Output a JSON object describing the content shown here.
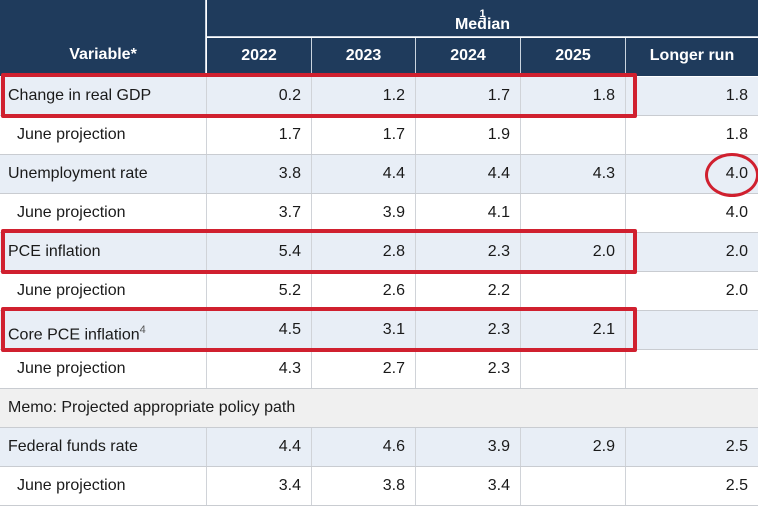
{
  "header": {
    "variable_label": "Variable*",
    "group_label": "Median",
    "group_footnote": "1",
    "columns": [
      "2022",
      "2023",
      "2024",
      "2025",
      "Longer run"
    ]
  },
  "rows": [
    {
      "label": "Change in real GDP",
      "footnote": "",
      "values": [
        "0.2",
        "1.2",
        "1.7",
        "1.8",
        "1.8"
      ]
    },
    {
      "label": "June projection",
      "footnote": "",
      "values": [
        "1.7",
        "1.7",
        "1.9",
        "",
        "1.8"
      ]
    },
    {
      "label": "Unemployment rate",
      "footnote": "",
      "values": [
        "3.8",
        "4.4",
        "4.4",
        "4.3",
        "4.0"
      ]
    },
    {
      "label": "June projection",
      "footnote": "",
      "values": [
        "3.7",
        "3.9",
        "4.1",
        "",
        "4.0"
      ]
    },
    {
      "label": "PCE inflation",
      "footnote": "",
      "values": [
        "5.4",
        "2.8",
        "2.3",
        "2.0",
        "2.0"
      ]
    },
    {
      "label": "June projection",
      "footnote": "",
      "values": [
        "5.2",
        "2.6",
        "2.2",
        "",
        "2.0"
      ]
    },
    {
      "label": "Core PCE inflation",
      "footnote": "4",
      "values": [
        "4.5",
        "3.1",
        "2.3",
        "2.1",
        ""
      ]
    },
    {
      "label": "June projection",
      "footnote": "",
      "values": [
        "4.3",
        "2.7",
        "2.3",
        "",
        ""
      ]
    },
    {
      "label": "Memo: Projected appropriate policy path",
      "footnote": "",
      "values": []
    },
    {
      "label": "Federal funds rate",
      "footnote": "",
      "values": [
        "4.4",
        "4.6",
        "3.9",
        "2.9",
        "2.5"
      ]
    },
    {
      "label": "June projection",
      "footnote": "",
      "values": [
        "3.4",
        "3.8",
        "3.4",
        "",
        "2.5"
      ]
    }
  ],
  "colors": {
    "header_bg": "#1f3b5c",
    "highlight": "#d0202f",
    "row_shade": "#e8eef6"
  }
}
